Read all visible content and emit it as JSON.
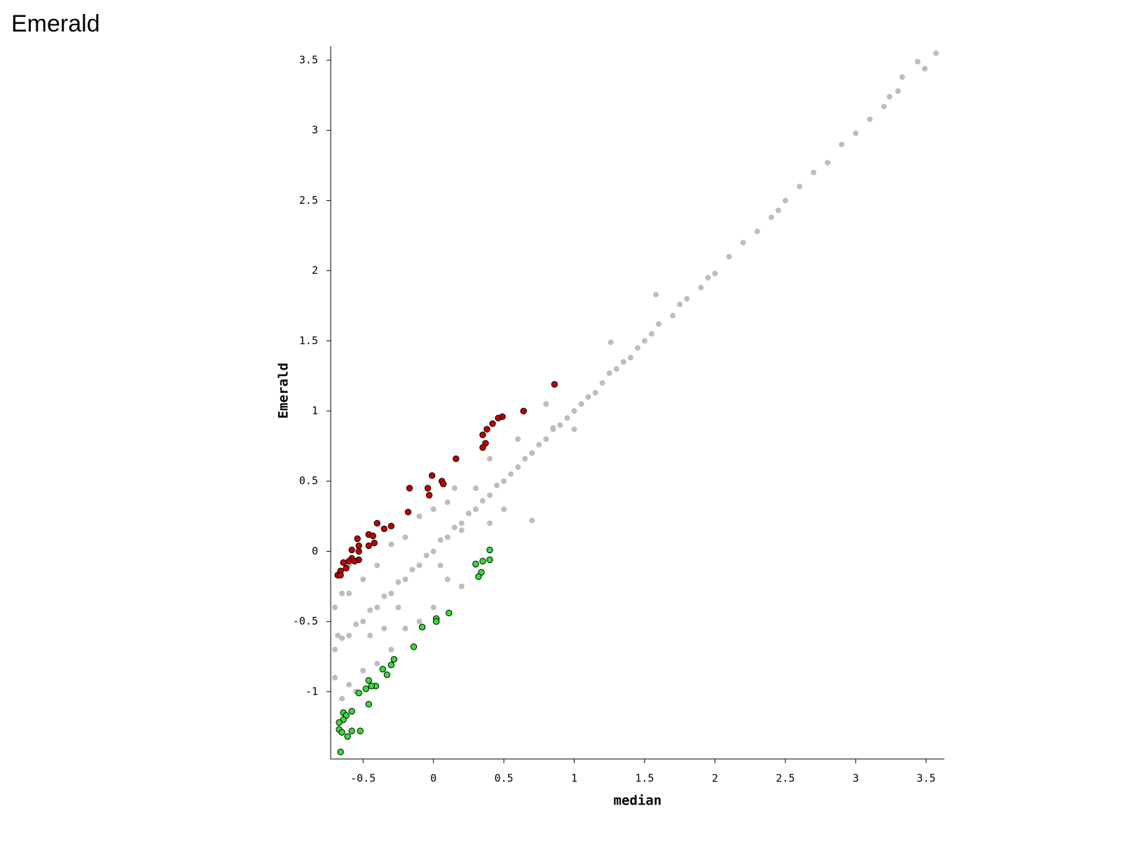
{
  "chart_data": {
    "type": "scatter",
    "title": "Emerald",
    "x_label": "median",
    "y_label": "Emerald",
    "xlim": [
      -0.73,
      3.63
    ],
    "ylim": [
      -1.48,
      3.6
    ],
    "xticks": [
      -0.5,
      0,
      0.5,
      1,
      1.5,
      2,
      2.5,
      3,
      3.5
    ],
    "yticks": [
      -1,
      -0.5,
      0,
      0.5,
      1,
      1.5,
      2,
      2.5,
      3,
      3.5
    ],
    "series": [
      {
        "color": "#bdbdbd",
        "x": [
          3.57,
          3.49,
          3.44,
          3.33,
          3.3,
          3.24,
          3.2,
          3.1,
          3.0,
          2.9,
          2.8,
          2.7,
          2.6,
          2.5,
          2.45,
          2.4,
          2.3,
          2.2,
          2.1,
          2.0,
          1.95,
          1.9,
          1.8,
          1.75,
          1.7,
          1.6,
          1.55,
          1.5,
          1.45,
          1.4,
          1.35,
          1.3,
          1.25,
          1.2,
          1.15,
          1.1,
          1.05,
          1.0,
          0.95,
          0.9,
          0.85,
          0.8,
          0.75,
          0.7,
          0.65,
          0.6,
          0.55,
          0.5,
          0.45,
          0.4,
          0.35,
          0.3,
          0.25,
          0.2,
          0.15,
          0.1,
          0.05,
          0,
          -0.05,
          -0.1,
          -0.15,
          -0.2,
          -0.25,
          -0.3,
          -0.35,
          -0.4,
          -0.45,
          -0.5,
          -0.55,
          -0.6,
          -0.65,
          -0.7,
          1.58,
          1.26,
          1.0,
          0.7,
          0.4,
          0.3,
          0.2,
          0.1,
          0.0,
          -0.1,
          -0.2,
          -0.3,
          -0.4,
          -0.5,
          -0.6,
          -0.7,
          0.3,
          0.2,
          0.1,
          0,
          -0.1,
          -0.2,
          -0.3,
          -0.4,
          -0.5,
          -0.6,
          -0.65,
          -0.55,
          -0.7,
          -0.68,
          -0.65,
          -0.6,
          0.5,
          0.6,
          0.8,
          0.85,
          0.4,
          -0.45,
          0.15,
          0.05,
          -0.25,
          -0.35
        ],
        "values": [
          3.55,
          3.44,
          3.49,
          3.38,
          3.28,
          3.24,
          3.17,
          3.08,
          2.98,
          2.9,
          2.77,
          2.7,
          2.6,
          2.5,
          2.43,
          2.38,
          2.28,
          2.2,
          2.1,
          1.98,
          1.95,
          1.88,
          1.8,
          1.76,
          1.68,
          1.62,
          1.55,
          1.5,
          1.45,
          1.38,
          1.35,
          1.3,
          1.27,
          1.2,
          1.13,
          1.1,
          1.05,
          1.0,
          0.95,
          0.9,
          0.87,
          0.8,
          0.76,
          0.7,
          0.66,
          0.6,
          0.55,
          0.5,
          0.47,
          0.4,
          0.36,
          0.3,
          0.27,
          0.2,
          0.17,
          0.1,
          0.08,
          0,
          -0.03,
          -0.1,
          -0.13,
          -0.2,
          -0.22,
          -0.3,
          -0.32,
          -0.4,
          -0.42,
          -0.5,
          -0.52,
          -0.6,
          -0.62,
          -0.7,
          1.83,
          1.49,
          0.87,
          0.22,
          0.66,
          0.45,
          0.15,
          0.35,
          0.3,
          0.25,
          0.1,
          0.05,
          -0.1,
          -0.2,
          -0.3,
          -0.4,
          -0.1,
          -0.25,
          -0.2,
          -0.4,
          -0.5,
          -0.55,
          -0.7,
          -0.8,
          -0.85,
          -0.95,
          -1.05,
          -1.0,
          -0.9,
          -0.6,
          -0.3,
          -0.1,
          0.3,
          0.8,
          1.05,
          0.88,
          0.2,
          -0.6,
          0.45,
          -0.1,
          -0.4,
          -0.55
        ]
      },
      {
        "color": "#c00000",
        "x": [
          0.86,
          0.64,
          0.49,
          0.46,
          0.42,
          0.38,
          0.35,
          0.37,
          0.35,
          0.16,
          -0.01,
          0.06,
          0.07,
          -0.04,
          -0.03,
          -0.17,
          -0.18,
          -0.4,
          -0.35,
          -0.3,
          -0.46,
          -0.43,
          -0.42,
          -0.54,
          -0.53,
          -0.46,
          -0.53,
          -0.58,
          -0.58,
          -0.53,
          -0.6,
          -0.64,
          -0.62,
          -0.66,
          -0.68,
          -0.66,
          -0.56
        ],
        "values": [
          1.19,
          1.0,
          0.96,
          0.95,
          0.91,
          0.87,
          0.83,
          0.77,
          0.74,
          0.66,
          0.54,
          0.5,
          0.48,
          0.45,
          0.4,
          0.45,
          0.28,
          0.2,
          0.16,
          0.18,
          0.12,
          0.11,
          0.06,
          0.09,
          0.04,
          0.04,
          0.0,
          0.01,
          -0.05,
          -0.06,
          -0.07,
          -0.08,
          -0.12,
          -0.14,
          -0.17,
          -0.17,
          -0.07
        ]
      },
      {
        "color": "#33dd33",
        "x": [
          0.4,
          0.4,
          0.35,
          0.3,
          0.34,
          0.32,
          0.11,
          0.02,
          0.02,
          -0.08,
          -0.14,
          -0.28,
          -0.3,
          -0.36,
          -0.33,
          -0.46,
          -0.41,
          -0.44,
          -0.48,
          -0.53,
          -0.46,
          -0.58,
          -0.64,
          -0.62,
          -0.64,
          -0.67,
          -0.67,
          -0.65,
          -0.58,
          -0.52,
          -0.61,
          -0.66
        ],
        "values": [
          0.01,
          -0.06,
          -0.07,
          -0.09,
          -0.15,
          -0.18,
          -0.44,
          -0.48,
          -0.5,
          -0.54,
          -0.68,
          -0.77,
          -0.81,
          -0.84,
          -0.88,
          -0.92,
          -0.96,
          -0.96,
          -0.98,
          -1.01,
          -1.09,
          -1.14,
          -1.15,
          -1.17,
          -1.2,
          -1.22,
          -1.27,
          -1.29,
          -1.28,
          -1.28,
          -1.32,
          -1.43
        ]
      }
    ]
  }
}
